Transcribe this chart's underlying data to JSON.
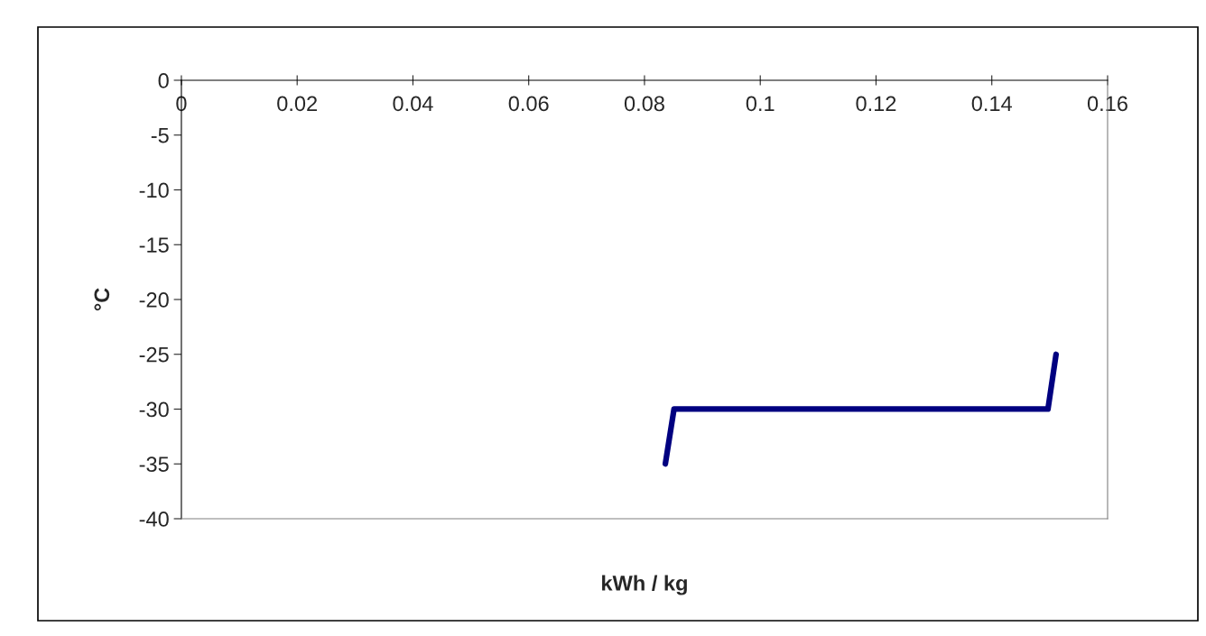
{
  "chart_data": {
    "type": "line",
    "xlabel": "kWh / kg",
    "ylabel": "°C",
    "x": [
      0.0836,
      0.0851,
      0.1497,
      0.1511
    ],
    "series": [
      {
        "color": "#000080",
        "values": [
          -35,
          -30,
          -30,
          -25
        ]
      }
    ],
    "xlim": [
      0,
      0.16
    ],
    "xticks": [
      0,
      0.02,
      0.04,
      0.06,
      0.08,
      0.1,
      0.12,
      0.14,
      0.16
    ],
    "ylim": [
      -40,
      0
    ],
    "yticks": [
      -40,
      -35,
      -30,
      -25,
      -20,
      -15,
      -10,
      -5,
      0
    ],
    "grid": false,
    "marker": "none",
    "line_style": "solid"
  }
}
